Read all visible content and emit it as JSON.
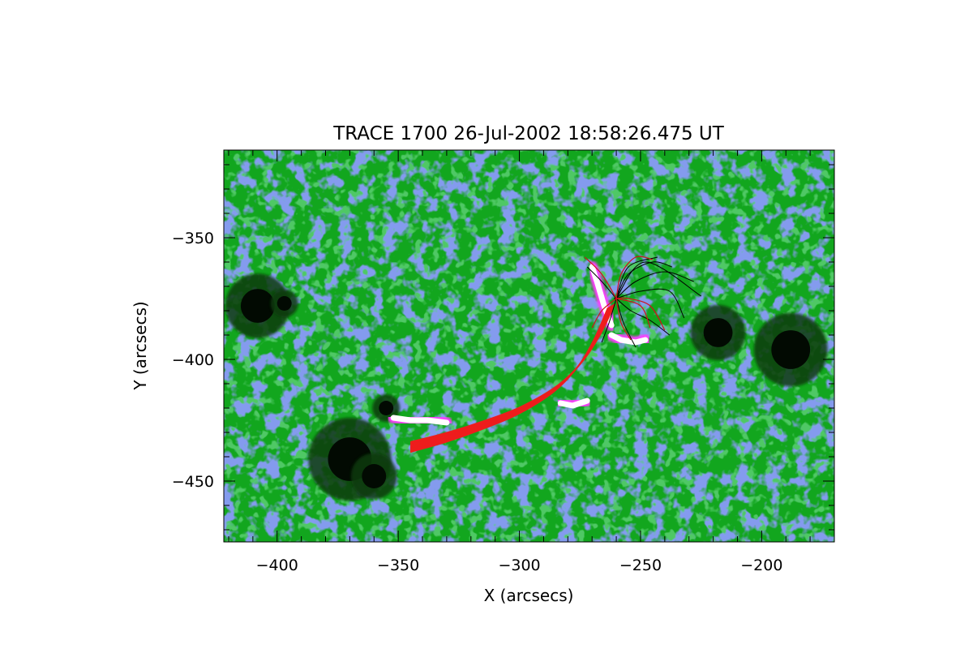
{
  "chart_data": {
    "type": "heatmap",
    "title": "TRACE 1700 26-Jul-2002 18:58:26.475 UT",
    "xlabel": "X (arcsecs)",
    "ylabel": "Y (arcsecs)",
    "xlim": [
      -422,
      -170
    ],
    "ylim": [
      -475,
      -314
    ],
    "x_major_ticks": [
      -400,
      -350,
      -300,
      -250,
      -200
    ],
    "x_tick_labels": [
      "−400",
      "−350",
      "−300",
      "−250",
      "−200"
    ],
    "x_minor_step": 10,
    "y_major_ticks": [
      -350,
      -400,
      -450
    ],
    "y_tick_labels": [
      "−350",
      "−400",
      "−450"
    ],
    "y_minor_step": 10,
    "grid": false,
    "colormap": {
      "background": "#12a61e",
      "network": "#3a55d8",
      "bright": "#ff3cff",
      "brightest": "#ffffff",
      "dark": "#0c3a0c",
      "darkest": "#020a02"
    },
    "sunspots": [
      {
        "x": -408,
        "y": -378,
        "r": 7
      },
      {
        "x": -397,
        "y": -377,
        "r": 3
      },
      {
        "x": -370,
        "y": -441,
        "r": 9
      },
      {
        "x": -360,
        "y": -448,
        "r": 5
      },
      {
        "x": -218,
        "y": -389,
        "r": 6
      },
      {
        "x": -188,
        "y": -396,
        "r": 8
      },
      {
        "x": -355,
        "y": -420,
        "r": 3
      }
    ],
    "flare_ribbons": [
      {
        "x": [
          -270,
          -268,
          -265,
          -262
        ],
        "y": [
          -362,
          -368,
          -378,
          -386
        ]
      },
      {
        "x": [
          -262,
          -258,
          -252,
          -248
        ],
        "y": [
          -390,
          -392,
          -393,
          -392
        ]
      },
      {
        "x": [
          -352,
          -345,
          -338,
          -330
        ],
        "y": [
          -424,
          -425,
          -425,
          -426
        ]
      },
      {
        "x": [
          -283,
          -278,
          -272
        ],
        "y": [
          -418,
          -419,
          -417
        ]
      }
    ],
    "footpoint": {
      "x": -260,
      "y": -375
    },
    "field_lines_black": [
      {
        "x": [
          -260,
          -255,
          -245,
          -237
        ],
        "y": [
          -375,
          -365,
          -360,
          -362
        ]
      },
      {
        "x": [
          -260,
          -252,
          -240,
          -228
        ],
        "y": [
          -375,
          -368,
          -364,
          -368
        ]
      },
      {
        "x": [
          -260,
          -250,
          -238,
          -232
        ],
        "y": [
          -375,
          -372,
          -372,
          -383
        ]
      },
      {
        "x": [
          -260,
          -254,
          -246,
          -238
        ],
        "y": [
          -375,
          -380,
          -384,
          -390
        ]
      },
      {
        "x": [
          -260,
          -257,
          -252
        ],
        "y": [
          -375,
          -385,
          -395
        ]
      },
      {
        "x": [
          -260,
          -263,
          -266
        ],
        "y": [
          -375,
          -385,
          -393
        ]
      },
      {
        "x": [
          -260,
          -266,
          -272
        ],
        "y": [
          -375,
          -368,
          -362
        ]
      },
      {
        "x": [
          -260,
          -255,
          -243
        ],
        "y": [
          -375,
          -362,
          -358
        ]
      },
      {
        "x": [
          -260,
          -248,
          -225
        ],
        "y": [
          -375,
          -360,
          -374
        ]
      }
    ],
    "field_lines_red": [
      {
        "x": [
          -260,
          -266,
          -273
        ],
        "y": [
          -375,
          -365,
          -358
        ]
      },
      {
        "x": [
          -260,
          -258,
          -252,
          -245
        ],
        "y": [
          -375,
          -365,
          -358,
          -359
        ]
      },
      {
        "x": [
          -260,
          -255,
          -246,
          -240
        ],
        "y": [
          -375,
          -375,
          -378,
          -388
        ]
      },
      {
        "x": [
          -260,
          -258,
          -254
        ],
        "y": [
          -375,
          -385,
          -392
        ]
      },
      {
        "x": [
          -260,
          -266,
          -270
        ],
        "y": [
          -375,
          -380,
          -387
        ]
      },
      {
        "x": [
          -260,
          -250,
          -246
        ],
        "y": [
          -375,
          -378,
          -387
        ]
      }
    ],
    "fan_loop": {
      "x": [
        -345,
        -330,
        -315,
        -300,
        -285,
        -275,
        -268,
        -262
      ],
      "y": [
        -436,
        -432,
        -427,
        -421,
        -412,
        -402,
        -391,
        -378
      ],
      "width": 6
    }
  }
}
